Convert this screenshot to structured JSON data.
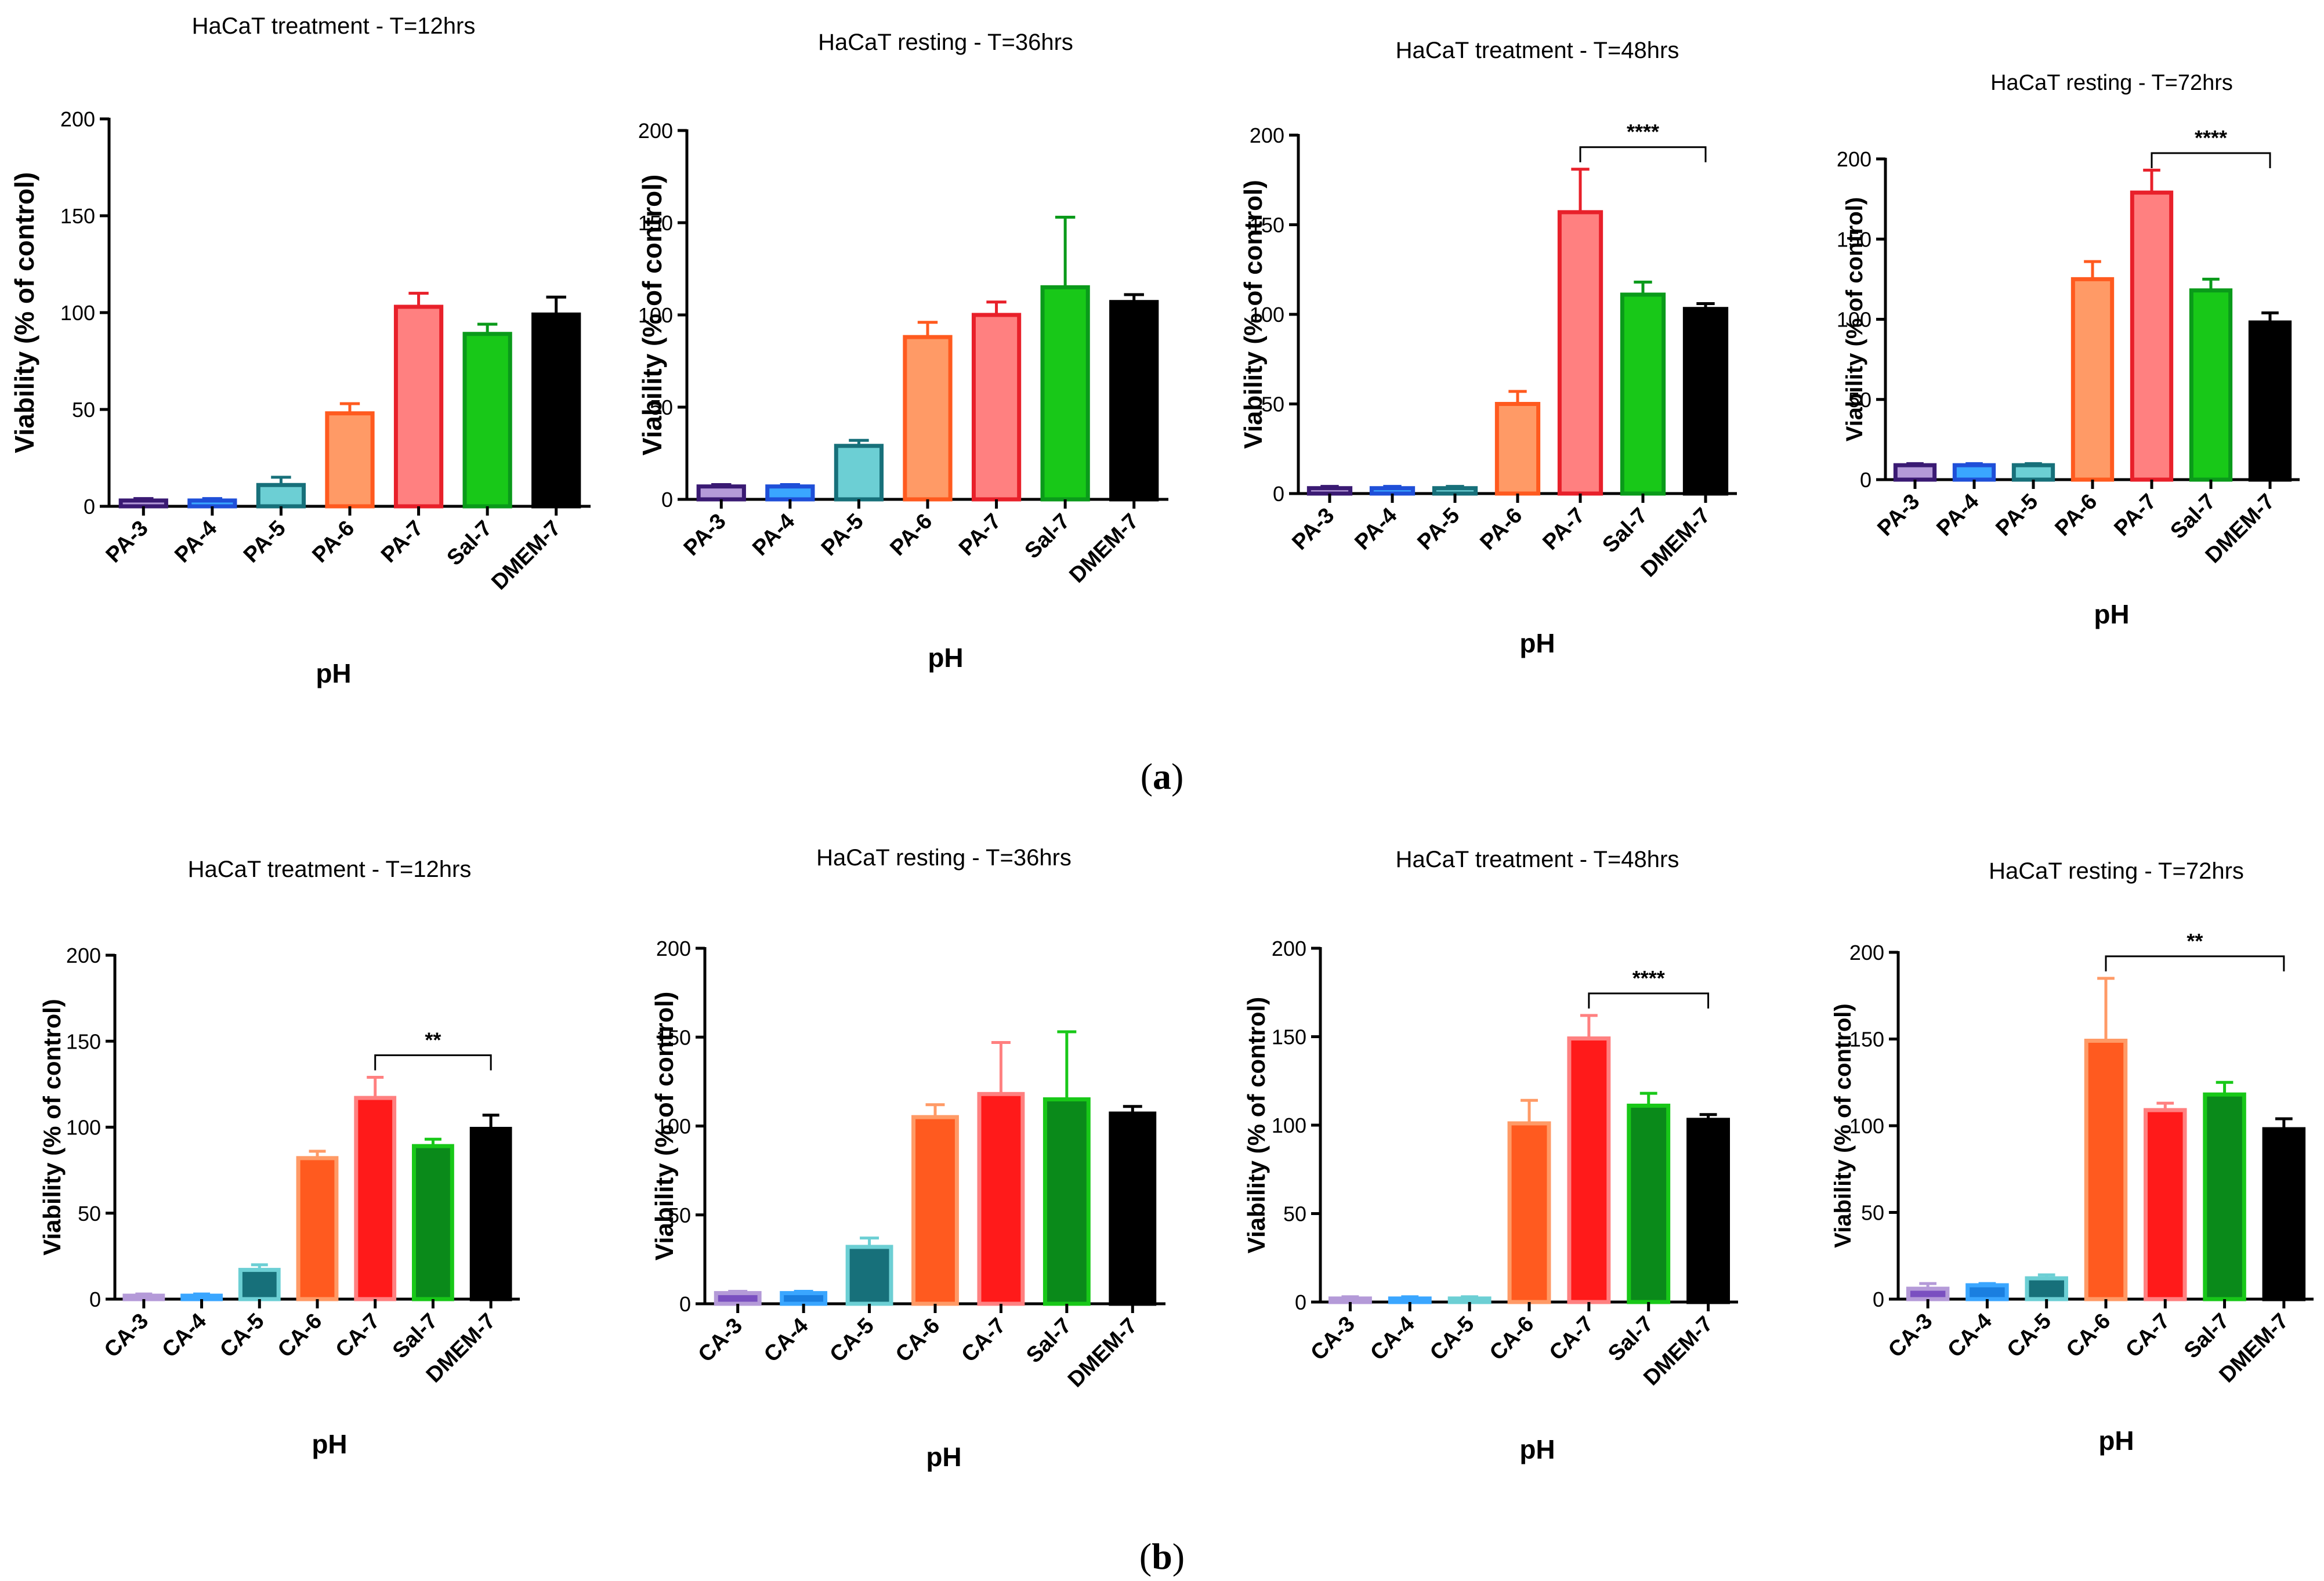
{
  "panels": [
    {
      "label": "(a)",
      "bold": "a"
    },
    {
      "label": "(b)",
      "bold": "b"
    }
  ],
  "chart_data": [
    {
      "type": "bar",
      "title": "HaCaT treatment - T=12hrs",
      "xlabel": "pH",
      "ylabel": "Viability (% of control)",
      "ylim": [
        0,
        200
      ],
      "yticks": [
        0,
        50,
        100,
        150,
        200
      ],
      "categories": [
        "PA-3",
        "PA-4",
        "PA-5",
        "PA-6",
        "PA-7",
        "Sal-7",
        "DMEM-7"
      ],
      "values": [
        3,
        3,
        11,
        48,
        103,
        89,
        99
      ],
      "errors": [
        1,
        1,
        4,
        5,
        7,
        5,
        9
      ],
      "colors": [
        "#3a1a73",
        "#1f4fd8",
        "#17707a",
        "#ff5a1f",
        "#e8202a",
        "#0a9a1a",
        "#000000"
      ],
      "fills": [
        "#b49ad8",
        "#3aa6ff",
        "#6ccfd4",
        "#ff9a66",
        "#ff8080",
        "#18c818",
        "#000000"
      ],
      "significance": null
    },
    {
      "type": "bar",
      "title": "HaCaT resting - T=36hrs",
      "xlabel": "pH",
      "ylabel": "Viability (% of control)",
      "ylim": [
        0,
        200
      ],
      "yticks": [
        0,
        50,
        100,
        150,
        200
      ],
      "categories": [
        "PA-3",
        "PA-4",
        "PA-5",
        "PA-6",
        "PA-7",
        "Sal-7",
        "DMEM-7"
      ],
      "values": [
        7,
        7,
        29,
        88,
        100,
        115,
        107
      ],
      "errors": [
        1,
        1,
        3,
        8,
        7,
        38,
        4
      ],
      "colors": [
        "#3a1a73",
        "#1f4fd8",
        "#17707a",
        "#ff5a1f",
        "#e8202a",
        "#0a9a1a",
        "#000000"
      ],
      "fills": [
        "#b49ad8",
        "#3aa6ff",
        "#6ccfd4",
        "#ff9a66",
        "#ff8080",
        "#18c818",
        "#000000"
      ],
      "significance": null
    },
    {
      "type": "bar",
      "title": "HaCaT treatment - T=48hrs",
      "xlabel": "pH",
      "ylabel": "Viability (% of control)",
      "ylim": [
        0,
        200
      ],
      "yticks": [
        0,
        50,
        100,
        150,
        200
      ],
      "categories": [
        "PA-3",
        "PA-4",
        "PA-5",
        "PA-6",
        "PA-7",
        "Sal-7",
        "DMEM-7"
      ],
      "values": [
        3,
        3,
        3,
        50,
        157,
        111,
        103
      ],
      "errors": [
        1,
        1,
        1,
        7,
        24,
        7,
        3
      ],
      "colors": [
        "#3a1a73",
        "#1f4fd8",
        "#17707a",
        "#ff5a1f",
        "#e8202a",
        "#0a9a1a",
        "#000000"
      ],
      "fills": [
        "#b49ad8",
        "#3aa6ff",
        "#6ccfd4",
        "#ff9a66",
        "#ff8080",
        "#18c818",
        "#000000"
      ],
      "significance": {
        "from": "PA-7",
        "to": "DMEM-7",
        "label": "****"
      }
    },
    {
      "type": "bar",
      "title": "HaCaT resting - T=72hrs",
      "xlabel": "pH",
      "ylabel": "Viability (% of control)",
      "ylim": [
        0,
        200
      ],
      "yticks": [
        0,
        50,
        100,
        150,
        200
      ],
      "categories": [
        "PA-3",
        "PA-4",
        "PA-5",
        "PA-6",
        "PA-7",
        "Sal-7",
        "DMEM-7"
      ],
      "values": [
        9,
        9,
        9,
        125,
        179,
        118,
        98
      ],
      "errors": [
        1,
        1,
        1,
        11,
        14,
        7,
        6
      ],
      "colors": [
        "#3a1a73",
        "#1f4fd8",
        "#17707a",
        "#ff5a1f",
        "#e8202a",
        "#0a9a1a",
        "#000000"
      ],
      "fills": [
        "#b49ad8",
        "#3aa6ff",
        "#6ccfd4",
        "#ff9a66",
        "#ff8080",
        "#18c818",
        "#000000"
      ],
      "significance": {
        "from": "PA-7",
        "to": "DMEM-7",
        "label": "****"
      }
    },
    {
      "type": "bar",
      "title": "HaCaT treatment - T=12hrs",
      "xlabel": "pH",
      "ylabel": "Viability (% of control)",
      "ylim": [
        0,
        200
      ],
      "yticks": [
        0,
        50,
        100,
        150,
        200
      ],
      "categories": [
        "CA-3",
        "CA-4",
        "CA-5",
        "CA-6",
        "CA-7",
        "Sal-7",
        "DMEM-7"
      ],
      "values": [
        2,
        2,
        17,
        82,
        117,
        89,
        99
      ],
      "errors": [
        1,
        1,
        3,
        4,
        12,
        4,
        8
      ],
      "colors": [
        "#b49ad8",
        "#3aa6ff",
        "#6ccfd4",
        "#ff9a66",
        "#ff8080",
        "#18c818",
        "#000000"
      ],
      "fills": [
        "#7a4fc0",
        "#1a7fe0",
        "#17707a",
        "#ff5a1f",
        "#ff1a1a",
        "#0a8a1a",
        "#000000"
      ],
      "significance": {
        "from": "CA-7",
        "to": "DMEM-7",
        "label": "**"
      }
    },
    {
      "type": "bar",
      "title": "HaCaT resting - T=36hrs",
      "xlabel": "pH",
      "ylabel": "Viability (% of control)",
      "ylim": [
        0,
        200
      ],
      "yticks": [
        0,
        50,
        100,
        150,
        200
      ],
      "categories": [
        "CA-3",
        "CA-4",
        "CA-5",
        "CA-6",
        "CA-7",
        "Sal-7",
        "DMEM-7"
      ],
      "values": [
        6,
        6,
        32,
        105,
        118,
        115,
        107
      ],
      "errors": [
        1,
        1,
        5,
        7,
        29,
        38,
        4
      ],
      "colors": [
        "#b49ad8",
        "#3aa6ff",
        "#6ccfd4",
        "#ff9a66",
        "#ff8080",
        "#18c818",
        "#000000"
      ],
      "fills": [
        "#7a4fc0",
        "#1a7fe0",
        "#17707a",
        "#ff5a1f",
        "#ff1a1a",
        "#0a8a1a",
        "#000000"
      ],
      "significance": null
    },
    {
      "type": "bar",
      "title": "HaCaT treatment - T=48hrs",
      "xlabel": "pH",
      "ylabel": "Viability (% of control)",
      "ylim": [
        0,
        200
      ],
      "yticks": [
        0,
        50,
        100,
        150,
        200
      ],
      "categories": [
        "CA-3",
        "CA-4",
        "CA-5",
        "CA-6",
        "CA-7",
        "Sal-7",
        "DMEM-7"
      ],
      "values": [
        2,
        2,
        2,
        101,
        149,
        111,
        103
      ],
      "errors": [
        1,
        1,
        1,
        13,
        13,
        7,
        3
      ],
      "colors": [
        "#b49ad8",
        "#3aa6ff",
        "#6ccfd4",
        "#ff9a66",
        "#ff8080",
        "#18c818",
        "#000000"
      ],
      "fills": [
        "#7a4fc0",
        "#1a7fe0",
        "#17707a",
        "#ff5a1f",
        "#ff1a1a",
        "#0a8a1a",
        "#000000"
      ],
      "significance": {
        "from": "CA-7",
        "to": "DMEM-7",
        "label": "****"
      }
    },
    {
      "type": "bar",
      "title": "HaCaT resting - T=72hrs",
      "xlabel": "pH",
      "ylabel": "Viability (% of control)",
      "ylim": [
        0,
        200
      ],
      "yticks": [
        0,
        50,
        100,
        150,
        200
      ],
      "categories": [
        "CA-3",
        "CA-4",
        "CA-5",
        "CA-6",
        "CA-7",
        "Sal-7",
        "DMEM-7"
      ],
      "values": [
        6,
        8,
        12,
        149,
        109,
        118,
        98
      ],
      "errors": [
        3,
        1,
        2,
        36,
        4,
        7,
        6
      ],
      "colors": [
        "#b49ad8",
        "#3aa6ff",
        "#6ccfd4",
        "#ff9a66",
        "#ff8080",
        "#18c818",
        "#000000"
      ],
      "fills": [
        "#7a4fc0",
        "#1a7fe0",
        "#17707a",
        "#ff5a1f",
        "#ff1a1a",
        "#0a8a1a",
        "#000000"
      ],
      "significance": {
        "from": "CA-6",
        "to": "DMEM-7",
        "label": "**"
      }
    }
  ]
}
